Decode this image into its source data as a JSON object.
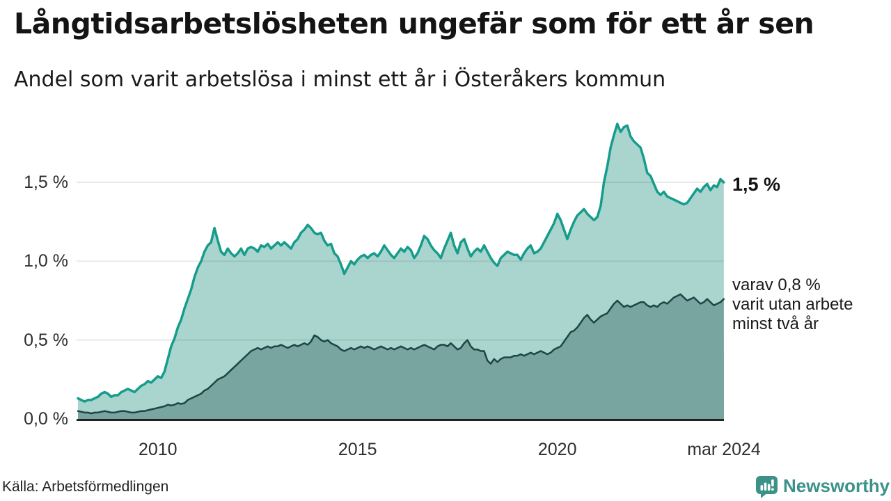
{
  "title": "Långtidsarbetslösheten ungefär som för ett år sen",
  "subtitle": "Andel som varit arbetslösa i minst ett år i Österåkers kommun",
  "source": "Källa: Arbetsförmedlingen",
  "branding": {
    "name": "Newsworthy",
    "icon": "bar-chart-speech-bubble-icon",
    "color": "#3c9289"
  },
  "annotations": {
    "latest_total": "1,5 %",
    "secondary_line1": "varav 0,8 %",
    "secondary_line2": "varit utan arbete",
    "secondary_line3": "minst två år"
  },
  "colors": {
    "total_line": "#169c8c",
    "total_fill": "#a9d5ce",
    "secondary_line": "#1e4545",
    "secondary_fill": "#78a5a0",
    "gridline": "rgba(40,40,40,0.10)",
    "axis": "#222222",
    "text": "#1a1a1a",
    "brand": "#3c9289"
  },
  "chart_data": {
    "type": "area",
    "title": "Långtidsarbetslösheten ungefär som för ett år sen",
    "subtitle": "Andel som varit arbetslösa i minst ett år i Österåkers kommun",
    "x_unit": "year (monthly observations)",
    "x_range": [
      2008.0,
      2024.17
    ],
    "y_range": [
      0,
      2.0
    ],
    "grid": "horizontal",
    "legend": "none (direct labels at line ends)",
    "yticks": [
      {
        "value": 0.0,
        "label": "0,0 %"
      },
      {
        "value": 0.5,
        "label": "0,5 %"
      },
      {
        "value": 1.0,
        "label": "1,0 %"
      },
      {
        "value": 1.5,
        "label": "1,5 %"
      }
    ],
    "xticks": [
      {
        "value": 2010,
        "label": "2010"
      },
      {
        "value": 2015,
        "label": "2015"
      },
      {
        "value": 2020,
        "label": "2020"
      },
      {
        "value": 2024.17,
        "label": "mar 2024"
      }
    ],
    "series": [
      {
        "name": "Arbetslösa minst ett år",
        "end_label": "1,5 %",
        "start": 2008.0,
        "step_months": 1,
        "values": [
          0.13,
          0.12,
          0.11,
          0.12,
          0.12,
          0.13,
          0.14,
          0.16,
          0.17,
          0.16,
          0.14,
          0.15,
          0.15,
          0.17,
          0.18,
          0.19,
          0.18,
          0.17,
          0.19,
          0.21,
          0.22,
          0.24,
          0.23,
          0.25,
          0.27,
          0.26,
          0.3,
          0.38,
          0.46,
          0.51,
          0.58,
          0.63,
          0.7,
          0.76,
          0.82,
          0.9,
          0.96,
          1.0,
          1.06,
          1.1,
          1.12,
          1.21,
          1.13,
          1.06,
          1.04,
          1.08,
          1.05,
          1.03,
          1.05,
          1.08,
          1.04,
          1.08,
          1.09,
          1.08,
          1.06,
          1.1,
          1.09,
          1.11,
          1.08,
          1.1,
          1.12,
          1.1,
          1.12,
          1.1,
          1.08,
          1.12,
          1.14,
          1.18,
          1.2,
          1.23,
          1.21,
          1.18,
          1.17,
          1.18,
          1.13,
          1.1,
          1.11,
          1.05,
          1.03,
          0.98,
          0.92,
          0.96,
          1.0,
          0.98,
          1.01,
          1.03,
          1.04,
          1.02,
          1.04,
          1.05,
          1.03,
          1.06,
          1.1,
          1.07,
          1.04,
          1.02,
          1.05,
          1.08,
          1.06,
          1.09,
          1.07,
          1.02,
          1.05,
          1.1,
          1.16,
          1.14,
          1.1,
          1.07,
          1.05,
          1.02,
          1.08,
          1.13,
          1.18,
          1.1,
          1.05,
          1.12,
          1.14,
          1.08,
          1.03,
          1.06,
          1.08,
          1.06,
          1.1,
          1.06,
          1.02,
          0.99,
          0.97,
          1.02,
          1.04,
          1.06,
          1.05,
          1.04,
          1.04,
          1.01,
          1.05,
          1.08,
          1.1,
          1.05,
          1.06,
          1.08,
          1.12,
          1.16,
          1.2,
          1.24,
          1.3,
          1.26,
          1.2,
          1.14,
          1.2,
          1.25,
          1.29,
          1.31,
          1.33,
          1.3,
          1.28,
          1.26,
          1.28,
          1.35,
          1.5,
          1.6,
          1.72,
          1.8,
          1.87,
          1.82,
          1.85,
          1.86,
          1.79,
          1.76,
          1.74,
          1.72,
          1.65,
          1.56,
          1.54,
          1.49,
          1.44,
          1.42,
          1.44,
          1.41,
          1.4,
          1.39,
          1.38,
          1.37,
          1.36,
          1.37,
          1.4,
          1.43,
          1.46,
          1.44,
          1.47,
          1.49,
          1.45,
          1.48,
          1.47,
          1.52,
          1.5
        ]
      },
      {
        "name": "varav utan arbete minst två år",
        "end_label": "varav 0,8 % varit utan arbete minst två år",
        "start": 2008.0,
        "step_months": 1,
        "values": [
          0.05,
          0.045,
          0.04,
          0.04,
          0.035,
          0.04,
          0.04,
          0.045,
          0.05,
          0.045,
          0.04,
          0.04,
          0.045,
          0.05,
          0.05,
          0.045,
          0.04,
          0.04,
          0.045,
          0.05,
          0.05,
          0.055,
          0.06,
          0.065,
          0.07,
          0.075,
          0.08,
          0.09,
          0.085,
          0.09,
          0.1,
          0.095,
          0.1,
          0.12,
          0.13,
          0.14,
          0.15,
          0.16,
          0.18,
          0.19,
          0.21,
          0.23,
          0.25,
          0.26,
          0.27,
          0.29,
          0.31,
          0.33,
          0.35,
          0.37,
          0.39,
          0.41,
          0.43,
          0.44,
          0.45,
          0.44,
          0.45,
          0.46,
          0.45,
          0.46,
          0.46,
          0.47,
          0.46,
          0.45,
          0.46,
          0.47,
          0.46,
          0.47,
          0.48,
          0.47,
          0.49,
          0.53,
          0.52,
          0.5,
          0.49,
          0.5,
          0.48,
          0.47,
          0.46,
          0.44,
          0.43,
          0.44,
          0.45,
          0.44,
          0.45,
          0.46,
          0.45,
          0.46,
          0.45,
          0.44,
          0.45,
          0.46,
          0.45,
          0.44,
          0.45,
          0.44,
          0.45,
          0.46,
          0.45,
          0.44,
          0.45,
          0.44,
          0.45,
          0.46,
          0.47,
          0.46,
          0.45,
          0.44,
          0.46,
          0.47,
          0.47,
          0.46,
          0.48,
          0.46,
          0.44,
          0.45,
          0.48,
          0.5,
          0.46,
          0.44,
          0.44,
          0.43,
          0.43,
          0.37,
          0.35,
          0.38,
          0.36,
          0.38,
          0.39,
          0.39,
          0.39,
          0.4,
          0.4,
          0.41,
          0.4,
          0.41,
          0.42,
          0.41,
          0.42,
          0.43,
          0.42,
          0.41,
          0.42,
          0.44,
          0.45,
          0.46,
          0.49,
          0.52,
          0.55,
          0.56,
          0.58,
          0.61,
          0.64,
          0.66,
          0.63,
          0.61,
          0.63,
          0.65,
          0.66,
          0.67,
          0.7,
          0.73,
          0.75,
          0.73,
          0.71,
          0.72,
          0.71,
          0.72,
          0.73,
          0.74,
          0.74,
          0.72,
          0.71,
          0.72,
          0.71,
          0.73,
          0.74,
          0.73,
          0.75,
          0.77,
          0.78,
          0.79,
          0.77,
          0.75,
          0.76,
          0.77,
          0.75,
          0.73,
          0.74,
          0.76,
          0.74,
          0.72,
          0.73,
          0.74,
          0.76
        ]
      }
    ]
  }
}
